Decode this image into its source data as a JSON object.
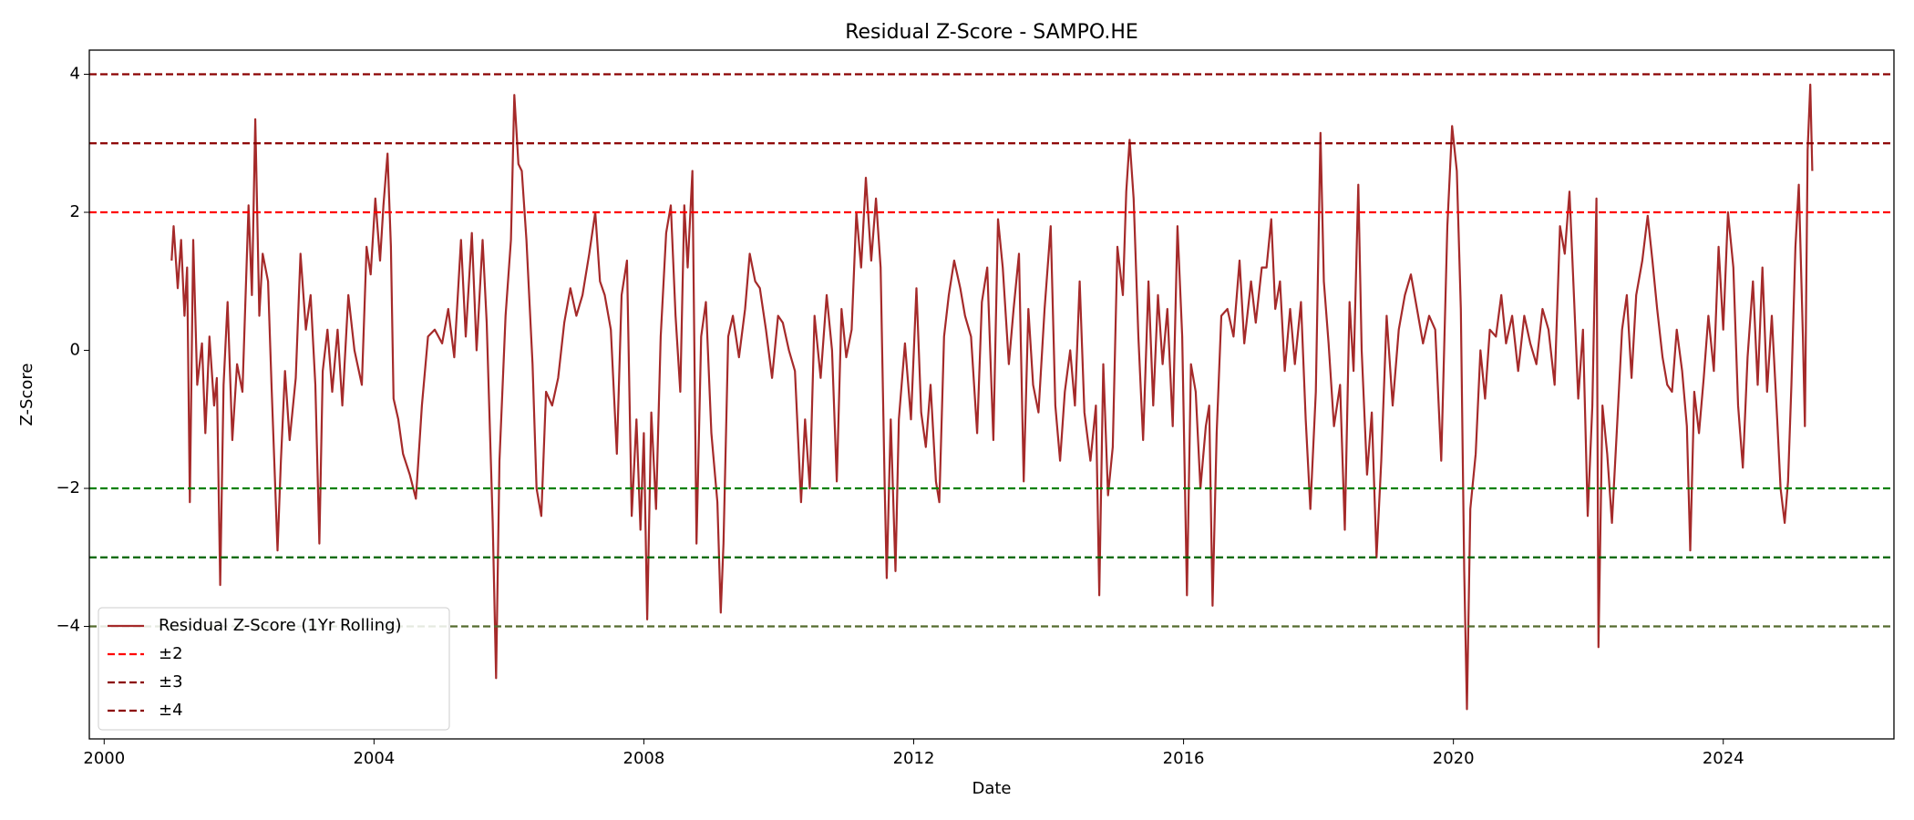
{
  "chart_data": {
    "type": "line",
    "title": "Residual Z-Score - SAMPO.HE",
    "xlabel": "Date",
    "ylabel": "Z-Score",
    "x": [
      2001.0,
      2001.03,
      2001.09,
      2001.14,
      2001.19,
      2001.23,
      2001.27,
      2001.32,
      2001.38,
      2001.45,
      2001.5,
      2001.56,
      2001.63,
      2001.67,
      2001.72,
      2001.77,
      2001.83,
      2001.9,
      2001.97,
      2002.05,
      2002.14,
      2002.19,
      2002.24,
      2002.3,
      2002.35,
      2002.43,
      2002.48,
      2002.57,
      2002.62,
      2002.68,
      2002.75,
      2002.84,
      2002.91,
      2002.99,
      2003.06,
      2003.13,
      2003.19,
      2003.24,
      2003.31,
      2003.38,
      2003.46,
      2003.53,
      2003.62,
      2003.71,
      2003.82,
      2003.89,
      2003.95,
      2004.02,
      2004.09,
      2004.14,
      2004.2,
      2004.25,
      2004.29,
      2004.36,
      2004.43,
      2004.53,
      2004.62,
      2004.71,
      2004.8,
      2004.9,
      2005.01,
      2005.1,
      2005.19,
      2005.29,
      2005.36,
      2005.45,
      2005.52,
      2005.61,
      2005.67,
      2005.76,
      2005.81,
      2005.86,
      2005.95,
      2006.03,
      2006.08,
      2006.14,
      2006.19,
      2006.26,
      2006.35,
      2006.41,
      2006.48,
      2006.55,
      2006.64,
      2006.73,
      2006.82,
      2006.91,
      2007.0,
      2007.09,
      2007.19,
      2007.28,
      2007.35,
      2007.42,
      2007.51,
      2007.6,
      2007.67,
      2007.75,
      2007.82,
      2007.89,
      2007.95,
      2008.0,
      2008.05,
      2008.11,
      2008.18,
      2008.25,
      2008.33,
      2008.4,
      2008.47,
      2008.54,
      2008.6,
      2008.65,
      2008.72,
      2008.78,
      2008.85,
      2008.92,
      2009.0,
      2009.09,
      2009.14,
      2009.18,
      2009.25,
      2009.32,
      2009.41,
      2009.5,
      2009.57,
      2009.65,
      2009.72,
      2009.81,
      2009.9,
      2009.99,
      2010.06,
      2010.15,
      2010.24,
      2010.33,
      2010.39,
      2010.46,
      2010.53,
      2010.62,
      2010.71,
      2010.79,
      2010.86,
      2010.93,
      2011.0,
      2011.08,
      2011.15,
      2011.22,
      2011.29,
      2011.37,
      2011.44,
      2011.51,
      2011.57,
      2011.6,
      2011.66,
      2011.73,
      2011.78,
      2011.87,
      2011.96,
      2012.04,
      2012.11,
      2012.18,
      2012.25,
      2012.33,
      2012.38,
      2012.45,
      2012.52,
      2012.6,
      2012.69,
      2012.76,
      2012.85,
      2012.94,
      2013.01,
      2013.09,
      2013.18,
      2013.25,
      2013.32,
      2013.41,
      2013.48,
      2013.56,
      2013.63,
      2013.7,
      2013.77,
      2013.85,
      2013.94,
      2014.03,
      2014.1,
      2014.17,
      2014.24,
      2014.32,
      2014.39,
      2014.46,
      2014.53,
      2014.62,
      2014.7,
      2014.75,
      2014.81,
      2014.88,
      2014.95,
      2015.02,
      2015.1,
      2015.15,
      2015.2,
      2015.26,
      2015.33,
      2015.4,
      2015.48,
      2015.55,
      2015.62,
      2015.69,
      2015.76,
      2015.84,
      2015.91,
      2015.98,
      2016.05,
      2016.11,
      2016.18,
      2016.25,
      2016.33,
      2016.38,
      2016.43,
      2016.49,
      2016.56,
      2016.65,
      2016.74,
      2016.83,
      2016.9,
      2017.0,
      2017.07,
      2017.16,
      2017.23,
      2017.3,
      2017.36,
      2017.43,
      2017.5,
      2017.58,
      2017.65,
      2017.74,
      2017.81,
      2017.88,
      2017.96,
      2018.03,
      2018.08,
      2018.15,
      2018.23,
      2018.32,
      2018.39,
      2018.46,
      2018.52,
      2018.59,
      2018.64,
      2018.72,
      2018.79,
      2018.86,
      2018.93,
      2019.01,
      2019.1,
      2019.19,
      2019.28,
      2019.37,
      2019.46,
      2019.55,
      2019.64,
      2019.73,
      2019.82,
      2019.91,
      2019.98,
      2020.05,
      2020.11,
      2020.16,
      2020.2,
      2020.25,
      2020.33,
      2020.4,
      2020.47,
      2020.54,
      2020.63,
      2020.71,
      2020.78,
      2020.87,
      2020.96,
      2021.05,
      2021.14,
      2021.23,
      2021.32,
      2021.41,
      2021.5,
      2021.58,
      2021.65,
      2021.72,
      2021.79,
      2021.85,
      2021.92,
      2021.99,
      2022.06,
      2022.12,
      2022.15,
      2022.21,
      2022.28,
      2022.35,
      2022.42,
      2022.5,
      2022.57,
      2022.64,
      2022.71,
      2022.8,
      2022.88,
      2022.95,
      2023.02,
      2023.1,
      2023.17,
      2023.24,
      2023.31,
      2023.39,
      2023.46,
      2023.51,
      2023.57,
      2023.64,
      2023.71,
      2023.78,
      2023.86,
      2023.93,
      2024.0,
      2024.07,
      2024.15,
      2024.22,
      2024.29,
      2024.36,
      2024.44,
      2024.51,
      2024.58,
      2024.65,
      2024.72,
      2024.8,
      2024.85,
      2024.91,
      2024.96,
      2025.01,
      2025.07,
      2025.12,
      2025.18,
      2025.21,
      2025.25,
      2025.29,
      2025.32
    ],
    "series": [
      {
        "name": "Residual Z-Score (1Yr Rolling)",
        "color": "#a52a2a",
        "values": [
          1.3,
          1.8,
          0.9,
          1.6,
          0.5,
          1.2,
          -2.2,
          1.6,
          -0.5,
          0.1,
          -1.2,
          0.2,
          -0.8,
          -0.4,
          -3.4,
          -0.5,
          0.7,
          -1.3,
          -0.2,
          -0.6,
          2.1,
          0.8,
          3.35,
          0.5,
          1.4,
          1.0,
          -0.5,
          -2.9,
          -1.6,
          -0.3,
          -1.3,
          -0.4,
          1.4,
          0.3,
          0.8,
          -0.5,
          -2.8,
          -0.3,
          0.3,
          -0.6,
          0.3,
          -0.8,
          0.8,
          0.0,
          -0.5,
          1.5,
          1.1,
          2.2,
          1.3,
          2.1,
          2.85,
          1.5,
          -0.7,
          -1.0,
          -1.5,
          -1.8,
          -2.15,
          -0.8,
          0.2,
          0.3,
          0.1,
          0.6,
          -0.1,
          1.6,
          0.2,
          1.7,
          0.0,
          1.6,
          0.4,
          -2.5,
          -4.75,
          -1.6,
          0.5,
          1.6,
          3.7,
          2.7,
          2.6,
          1.6,
          -0.2,
          -2.0,
          -2.4,
          -0.6,
          -0.8,
          -0.4,
          0.4,
          0.9,
          0.5,
          0.8,
          1.4,
          2.0,
          1.0,
          0.8,
          0.3,
          -1.5,
          0.8,
          1.3,
          -2.4,
          -1.0,
          -2.6,
          -1.2,
          -3.9,
          -0.9,
          -2.3,
          0.2,
          1.7,
          2.1,
          0.5,
          -0.6,
          2.1,
          1.2,
          2.6,
          -2.8,
          0.2,
          0.7,
          -1.2,
          -2.2,
          -3.8,
          -2.8,
          0.2,
          0.5,
          -0.1,
          0.6,
          1.4,
          1.0,
          0.9,
          0.3,
          -0.4,
          0.5,
          0.4,
          0.0,
          -0.3,
          -2.2,
          -1.0,
          -2.0,
          0.5,
          -0.4,
          0.8,
          0.0,
          -1.9,
          0.6,
          -0.1,
          0.3,
          2.0,
          1.2,
          2.5,
          1.3,
          2.2,
          1.2,
          -2.0,
          -3.3,
          -1.0,
          -3.2,
          -1.0,
          0.1,
          -1.0,
          0.9,
          -0.9,
          -1.4,
          -0.5,
          -1.9,
          -2.2,
          0.2,
          0.8,
          1.3,
          0.9,
          0.5,
          0.2,
          -1.2,
          0.7,
          1.2,
          -1.3,
          1.9,
          1.2,
          -0.2,
          0.6,
          1.4,
          -1.9,
          0.6,
          -0.5,
          -0.9,
          0.6,
          1.8,
          -0.8,
          -1.6,
          -0.6,
          0.0,
          -0.8,
          1.0,
          -0.9,
          -1.6,
          -0.8,
          -3.55,
          -0.2,
          -2.1,
          -1.4,
          1.5,
          0.8,
          2.3,
          3.05,
          2.2,
          0.2,
          -1.3,
          1.0,
          -0.8,
          0.8,
          -0.2,
          0.6,
          -1.1,
          1.8,
          0.2,
          -3.55,
          -0.2,
          -0.6,
          -2.0,
          -1.1,
          -0.8,
          -3.7,
          -1.2,
          0.5,
          0.6,
          0.2,
          1.3,
          0.1,
          1.0,
          0.4,
          1.2,
          1.2,
          1.9,
          0.6,
          1.0,
          -0.3,
          0.6,
          -0.2,
          0.7,
          -1.0,
          -2.3,
          -0.6,
          3.15,
          1.0,
          0.1,
          -1.1,
          -0.5,
          -2.6,
          0.7,
          -0.3,
          2.4,
          0.0,
          -1.8,
          -0.9,
          -3.0,
          -1.6,
          0.5,
          -0.8,
          0.3,
          0.8,
          1.1,
          0.6,
          0.1,
          0.5,
          0.3,
          -1.6,
          1.8,
          3.25,
          2.6,
          0.6,
          -3.2,
          -5.2,
          -2.3,
          -1.5,
          0.0,
          -0.7,
          0.3,
          0.2,
          0.8,
          0.1,
          0.5,
          -0.3,
          0.5,
          0.1,
          -0.2,
          0.6,
          0.3,
          -0.5,
          1.8,
          1.4,
          2.3,
          0.7,
          -0.7,
          0.3,
          -2.4,
          -0.8,
          2.2,
          -4.3,
          -0.8,
          -1.5,
          -2.5,
          -1.2,
          0.3,
          0.8,
          -0.4,
          0.8,
          1.3,
          1.95,
          1.3,
          0.6,
          -0.1,
          -0.5,
          -0.6,
          0.3,
          -0.3,
          -1.1,
          -2.9,
          -0.6,
          -1.2,
          -0.4,
          0.5,
          -0.3,
          1.5,
          0.3,
          2.0,
          1.2,
          -0.8,
          -1.7,
          -0.1,
          1.0,
          -0.5,
          1.2,
          -0.6,
          0.5,
          -1.0,
          -2.0,
          -2.5,
          -1.9,
          -0.5,
          1.5,
          2.4,
          0.2,
          -1.1,
          2.9,
          3.85,
          2.6
        ]
      }
    ],
    "hlines": [
      {
        "name": "±2",
        "color": "#ff0000",
        "lines": [
          {
            "value": 2,
            "color": "#ff0000"
          },
          {
            "value": -2,
            "color": "#008000"
          }
        ]
      },
      {
        "name": "±3",
        "color": "#8b0000",
        "lines": [
          {
            "value": 3,
            "color": "#8b0000"
          },
          {
            "value": -3,
            "color": "#006400"
          }
        ]
      },
      {
        "name": "±4",
        "color": "#8b0000",
        "lines": [
          {
            "value": 4,
            "color": "#8b0000"
          },
          {
            "value": -4,
            "color": "#556b2f"
          }
        ]
      }
    ],
    "xlim": [
      1999.78,
      2026.53
    ],
    "xticks": [
      2000,
      2004,
      2008,
      2012,
      2016,
      2020,
      2024
    ],
    "ylim": [
      -5.63,
      4.35
    ],
    "yticks": [
      {
        "value": -4,
        "label": "−4"
      },
      {
        "value": -2,
        "label": "−2"
      },
      0,
      2,
      4
    ],
    "legend": "lower left"
  }
}
